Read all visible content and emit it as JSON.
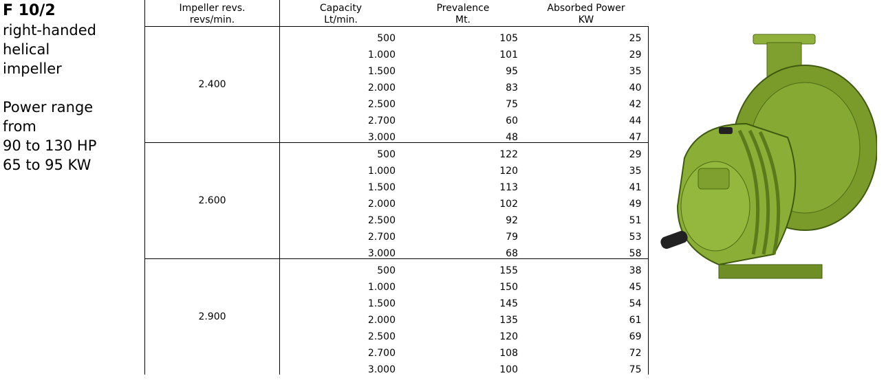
{
  "header": {
    "title": "F 10/2",
    "lines": [
      "right-handed",
      "helical",
      "impeller",
      "Power range",
      "from",
      "90 to 130 HP",
      "65 to 95 KW"
    ]
  },
  "table": {
    "columns": [
      [
        "Impeller revs.",
        "revs/min."
      ],
      [
        "Capacity",
        "Lt/min."
      ],
      [
        "Prevalence",
        "Mt."
      ],
      [
        "Absorbed Power",
        "KW"
      ]
    ],
    "groups": [
      {
        "speed": "2.400",
        "rows": [
          [
            500,
            105,
            25
          ],
          [
            "1.000",
            101,
            29
          ],
          [
            "1.500",
            95,
            35
          ],
          [
            "2.000",
            83,
            40
          ],
          [
            "2.500",
            75,
            42
          ],
          [
            "2.700",
            60,
            44
          ],
          [
            "3.000",
            48,
            47
          ]
        ]
      },
      {
        "speed": "2.600",
        "rows": [
          [
            500,
            122,
            29
          ],
          [
            "1.000",
            120,
            35
          ],
          [
            "1.500",
            113,
            41
          ],
          [
            "2.000",
            102,
            49
          ],
          [
            "2.500",
            92,
            51
          ],
          [
            "2.700",
            79,
            53
          ],
          [
            "3.000",
            68,
            58
          ]
        ]
      },
      {
        "speed": "2.900",
        "rows": [
          [
            500,
            155,
            38
          ],
          [
            "1.000",
            150,
            45
          ],
          [
            "1.500",
            145,
            54
          ],
          [
            "2.000",
            135,
            61
          ],
          [
            "2.500",
            120,
            69
          ],
          [
            "2.700",
            108,
            72
          ],
          [
            "3.000",
            100,
            75
          ]
        ]
      }
    ]
  }
}
